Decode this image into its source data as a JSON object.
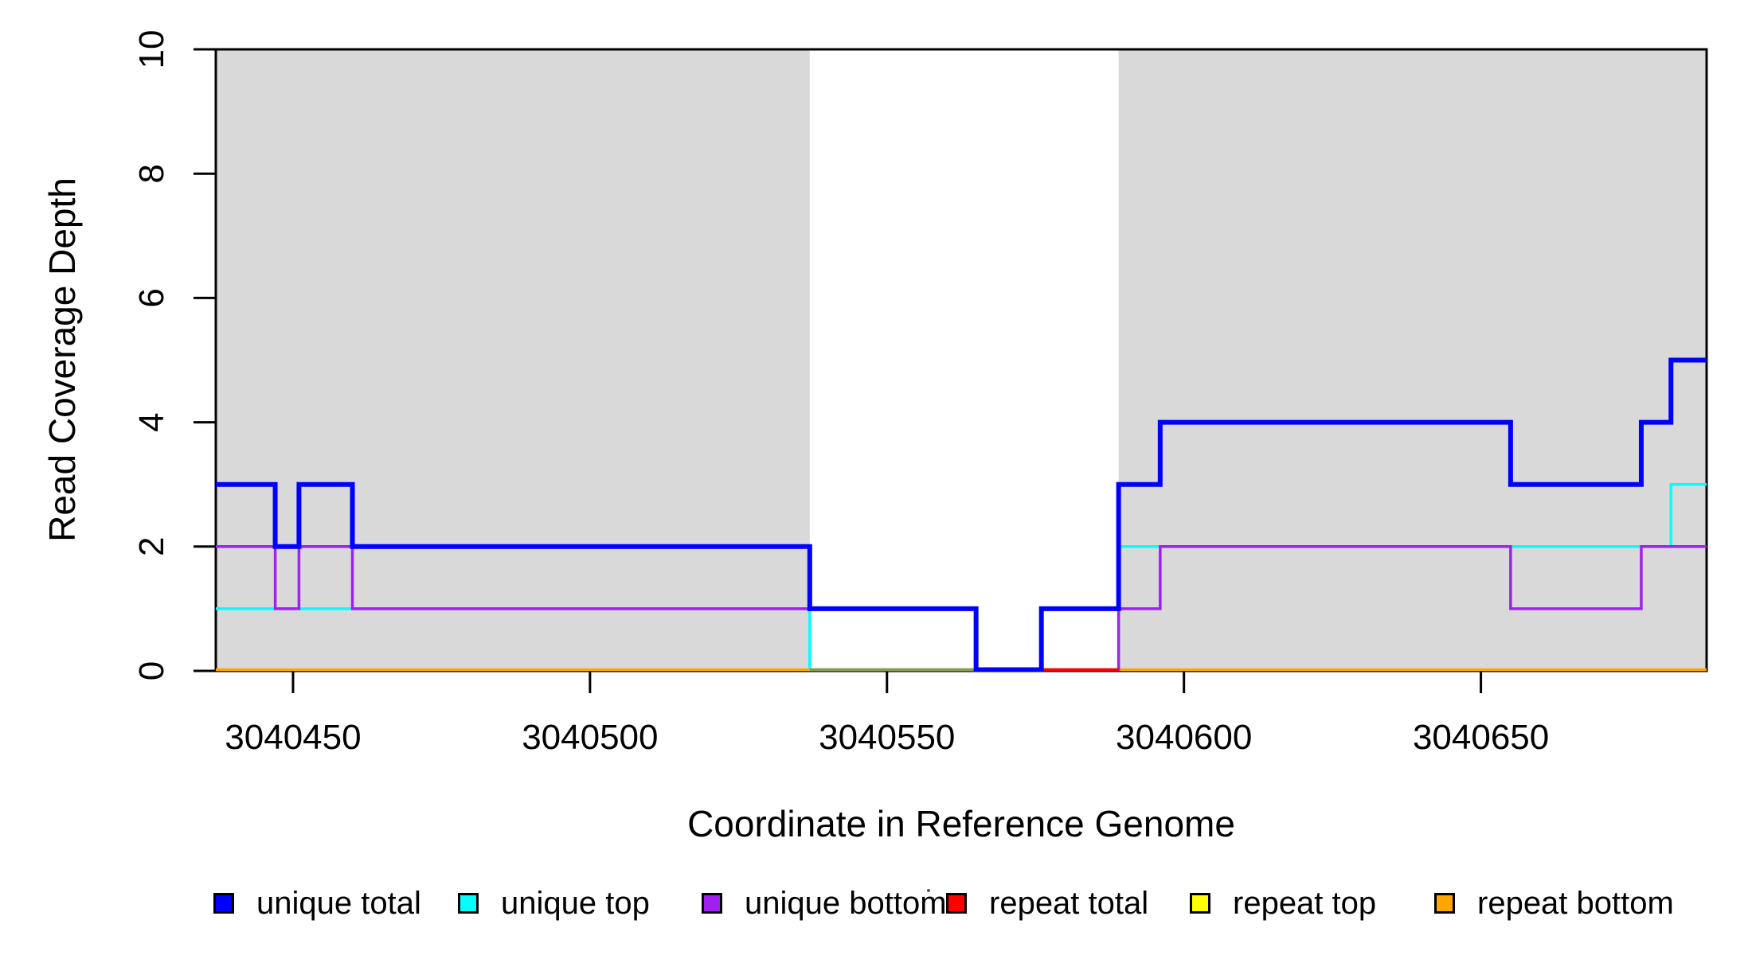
{
  "figure": {
    "background": "#ffffff"
  },
  "axes": {
    "x": {
      "label": "Coordinate in Reference Genome",
      "ticks": [
        3040450,
        3040500,
        3040550,
        3040600,
        3040650
      ],
      "tick_labels": [
        "3040450",
        "3040500",
        "3040550",
        "3040600",
        "3040650"
      ]
    },
    "y": {
      "label": "Read Coverage Depth",
      "ticks": [
        0,
        2,
        4,
        6,
        8,
        10
      ],
      "tick_labels": [
        "0",
        "2",
        "4",
        "6",
        "8",
        "10"
      ]
    }
  },
  "legend": {
    "items": [
      {
        "label": "unique total",
        "color": "#0000FF"
      },
      {
        "label": "unique top",
        "color": "#00FFFF"
      },
      {
        "label": "unique bottom",
        "color": "#A020F0"
      },
      {
        "label": "repeat total",
        "color": "#FF0000"
      },
      {
        "label": "repeat top",
        "color": "#FFFF00"
      },
      {
        "label": "repeat bottom",
        "color": "#FFA500"
      }
    ]
  },
  "chart_data": {
    "type": "line",
    "step": true,
    "title": "",
    "xlabel": "Coordinate in Reference Genome",
    "ylabel": "Read Coverage Depth",
    "xlim": [
      3040437,
      3040688
    ],
    "ylim": [
      0,
      10
    ],
    "grid": false,
    "legend_position": "bottom-horizontal",
    "shaded_regions": [
      {
        "x0": 3040437,
        "x1": 3040537,
        "color": "#D9D9D9"
      },
      {
        "x0": 3040589,
        "x1": 3040688,
        "color": "#D9D9D9"
      }
    ],
    "series": [
      {
        "name": "unique total",
        "color": "#0000FF",
        "line_width": 6,
        "steps": [
          [
            3040437,
            3040447,
            3
          ],
          [
            3040447,
            3040451,
            2
          ],
          [
            3040451,
            3040460,
            3
          ],
          [
            3040460,
            3040537,
            2
          ],
          [
            3040537,
            3040565,
            1
          ],
          [
            3040565,
            3040576,
            0
          ],
          [
            3040576,
            3040589,
            1
          ],
          [
            3040589,
            3040596,
            3
          ],
          [
            3040596,
            3040655,
            4
          ],
          [
            3040655,
            3040677,
            3
          ],
          [
            3040677,
            3040682,
            4
          ],
          [
            3040682,
            3040688,
            5
          ]
        ]
      },
      {
        "name": "unique top",
        "color": "#00FFFF",
        "line_width": 3.5,
        "steps": [
          [
            3040437,
            3040537,
            1
          ],
          [
            3040537,
            3040576,
            0
          ],
          [
            3040576,
            3040589,
            1
          ],
          [
            3040589,
            3040682,
            2
          ],
          [
            3040682,
            3040688,
            3
          ]
        ]
      },
      {
        "name": "unique bottom",
        "color": "#A020F0",
        "line_width": 3.5,
        "steps": [
          [
            3040437,
            3040447,
            2
          ],
          [
            3040447,
            3040451,
            1
          ],
          [
            3040451,
            3040460,
            2
          ],
          [
            3040460,
            3040565,
            1
          ],
          [
            3040565,
            3040589,
            0
          ],
          [
            3040589,
            3040596,
            1
          ],
          [
            3040596,
            3040655,
            2
          ],
          [
            3040655,
            3040677,
            1
          ],
          [
            3040677,
            3040688,
            2
          ]
        ]
      },
      {
        "name": "repeat total",
        "color": "#FF0000",
        "line_width": 3,
        "steps": [
          [
            3040437,
            3040688,
            0
          ]
        ]
      },
      {
        "name": "repeat top",
        "color": "#FFFF00",
        "line_width": 3,
        "steps": [
          [
            3040437,
            3040688,
            0
          ]
        ]
      },
      {
        "name": "repeat bottom",
        "color": "#FFA500",
        "line_width": 3.5,
        "steps": [
          [
            3040437,
            3040688,
            0
          ]
        ]
      }
    ],
    "baseline_overlays": [
      {
        "x0": 3040537,
        "x1": 3040565,
        "color": "#879A52",
        "line_width": 3.5
      },
      {
        "x0": 3040576,
        "x1": 3040589,
        "color": "#FF0000",
        "line_width": 3.5
      }
    ],
    "paint_order": [
      "unique top",
      "repeat total",
      "repeat top",
      "repeat bottom",
      "overlay:0",
      "unique bottom",
      "overlay:1",
      "unique total"
    ]
  }
}
